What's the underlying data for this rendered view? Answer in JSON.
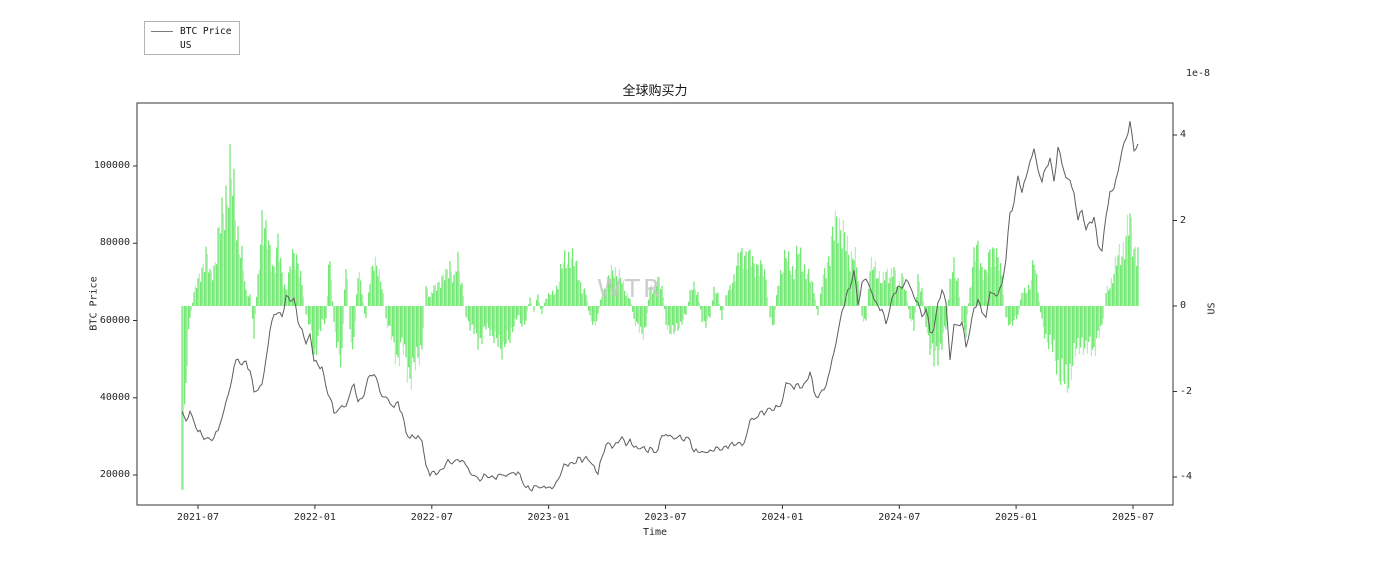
{
  "figure": {
    "title": "全球购买力",
    "watermark": "WTR",
    "background": "#ffffff"
  },
  "legend": {
    "items": [
      {
        "label": "BTC Price",
        "type": "line",
        "color": "#7a7a7a"
      },
      {
        "label": "US",
        "type": "patch",
        "color": "#3fdf3f"
      }
    ]
  },
  "axes": {
    "x": {
      "label": "Time"
    },
    "y_left": {
      "label": "BTC Price"
    },
    "y_right": {
      "label": "US",
      "offset_text": "1e-8"
    }
  },
  "chart_data": {
    "type": "line+bar",
    "title": "全球购买力",
    "xlabel": "Time",
    "ylabel_left": "BTC Price",
    "ylabel_right": "US",
    "right_axis_multiplier": "1e-8",
    "grid": false,
    "legend_position": "upper-left-outside",
    "x_tick_labels": [
      "2021-07",
      "2022-01",
      "2022-07",
      "2023-01",
      "2023-07",
      "2024-01",
      "2024-07",
      "2025-01",
      "2025-07"
    ],
    "y_left_tick_labels": [
      "20000",
      "40000",
      "60000",
      "80000",
      "100000"
    ],
    "y_left_tick_values": [
      20000,
      40000,
      60000,
      80000,
      100000
    ],
    "y_right_tick_labels": [
      "4",
      "2",
      "0",
      "-2",
      "-4"
    ],
    "y_right_tick_values": [
      4,
      2,
      0,
      -2,
      -4
    ],
    "y_left_range": [
      12200,
      116400
    ],
    "y_right_range": [
      -4.75,
      4.75
    ],
    "x_range": [
      "2021-04-20",
      "2025-08-08"
    ],
    "start_date": "2021-06-01",
    "step_days": 6.25,
    "series": [
      {
        "name": "BTC Price",
        "type": "line",
        "axis": "left",
        "color": "#5d5d5d",
        "values": [
          36500,
          34000,
          36500,
          33800,
          31200,
          30300,
          29500,
          29300,
          29700,
          31500,
          34800,
          39000,
          42500,
          48000,
          50000,
          48500,
          49500,
          47000,
          41500,
          42000,
          43500,
          50000,
          57500,
          61500,
          62000,
          61000,
          66500,
          65000,
          65800,
          59500,
          57800,
          54000,
          56500,
          49500,
          48500,
          48000,
          42800,
          40000,
          36000,
          36800,
          38000,
          37800,
          41000,
          43500,
          39000,
          39800,
          43000,
          45800,
          46000,
          43800,
          40300,
          40200,
          38500,
          37500,
          39000,
          36000,
          31000,
          29500,
          29800,
          30200,
          28800,
          22500,
          19800,
          21000,
          20500,
          21500,
          23000,
          23200,
          23500,
          24000,
          23800,
          22500,
          20500,
          19900,
          19200,
          19000,
          19900,
          19400,
          19300,
          20000,
          20000,
          19600,
          20400,
          20600,
          20800,
          18500,
          16700,
          16200,
          17200,
          16900,
          16800,
          16600,
          16900,
          17000,
          18800,
          21200,
          22700,
          23100,
          22900,
          24600,
          23300,
          24800,
          23400,
          22400,
          20200,
          24700,
          27800,
          28100,
          27500,
          28300,
          29900,
          27600,
          29300,
          27200,
          26800,
          27100,
          26300,
          27200,
          25800,
          26500,
          30200,
          30500,
          30300,
          29300,
          29900,
          29200,
          29800,
          29100,
          26000,
          25900,
          26100,
          25800,
          26500,
          26200,
          27100,
          26500,
          27500,
          27900,
          27600,
          28400,
          27600,
          29800,
          34200,
          34400,
          35100,
          36600,
          36300,
          37300,
          36800,
          37700,
          38800,
          43900,
          43600,
          42200,
          43700,
          42600,
          44200,
          46600,
          41500,
          40000,
          42000,
          43100,
          47100,
          51800,
          57000,
          62400,
          66200,
          68300,
          73100,
          64000,
          69900,
          70700,
          68500,
          65500,
          63800,
          62900,
          59100,
          63200,
          66900,
          68900,
          68300,
          70600,
          68800,
          66100,
          64800,
          61000,
          63000,
          57000,
          57800,
          64700,
          67900,
          64600,
          49800,
          59000,
          58800,
          59500,
          53100,
          57500,
          63200,
          65500,
          62100,
          60800,
          67400,
          67000,
          66700,
          69400,
          75900,
          88000,
          90500,
          97500,
          93100,
          97000,
          101200,
          104500,
          99000,
          95900,
          99500,
          102100,
          96000,
          104900,
          100500,
          97000,
          96300,
          93000,
          86000,
          88500,
          83500,
          85500,
          86800,
          79500,
          78000,
          87000,
          93400,
          94200,
          98500,
          104000,
          107000,
          111600,
          103900,
          105700
        ]
      },
      {
        "name": "US",
        "type": "bar",
        "axis": "right",
        "color": "#3fdf3f",
        "unit": "1e-8",
        "values": [
          -4.3,
          -1.6,
          -0.3,
          0.3,
          0.55,
          0.9,
          1.2,
          0.7,
          0.9,
          1.5,
          2.0,
          2.6,
          3.0,
          2.5,
          1.7,
          1.1,
          0.3,
          0.25,
          -0.6,
          0.6,
          2.1,
          1.6,
          1.2,
          0.9,
          1.4,
          0.7,
          0.4,
          0.8,
          1.2,
          1.1,
          0.45,
          -0.2,
          -0.5,
          -1.1,
          -0.8,
          -0.4,
          -0.3,
          1.3,
          -0.5,
          -0.9,
          -1.3,
          1.2,
          -0.6,
          -1.0,
          0.9,
          0.3,
          -0.4,
          0.7,
          0.9,
          0.95,
          0.5,
          -0.3,
          -0.6,
          -1.0,
          -1.2,
          -0.9,
          -1.3,
          -1.6,
          -1.5,
          -1.2,
          -0.9,
          0.5,
          0.2,
          0.4,
          0.55,
          0.6,
          0.7,
          1.0,
          0.6,
          1.0,
          0.5,
          -0.2,
          -0.45,
          -0.6,
          -0.8,
          -0.7,
          -0.5,
          -0.55,
          -0.7,
          -0.9,
          -1.0,
          -0.75,
          -0.85,
          -0.4,
          -0.2,
          -0.5,
          -0.3,
          0.2,
          -0.15,
          0.25,
          -0.2,
          0.2,
          0.25,
          0.3,
          0.5,
          0.9,
          1.1,
          1.2,
          1.0,
          0.8,
          0.4,
          0.3,
          -0.3,
          -0.5,
          -0.2,
          0.3,
          0.5,
          0.7,
          0.9,
          0.75,
          0.55,
          0.3,
          0.2,
          -0.3,
          -0.5,
          -0.7,
          -0.45,
          0.5,
          0.35,
          0.6,
          0.5,
          -0.4,
          -0.55,
          -0.65,
          -0.5,
          -0.35,
          -0.2,
          0.3,
          0.45,
          0.3,
          -0.3,
          -0.4,
          -0.25,
          0.35,
          0.25,
          -0.3,
          0.2,
          0.4,
          0.7,
          1.0,
          1.15,
          1.25,
          1.1,
          0.9,
          1.0,
          0.85,
          0.6,
          -0.3,
          -0.4,
          0.5,
          0.9,
          1.1,
          0.95,
          0.8,
          1.25,
          1.0,
          0.85,
          0.6,
          0.4,
          -0.3,
          0.5,
          0.9,
          1.3,
          1.7,
          2.05,
          1.8,
          1.4,
          1.1,
          1.35,
          0.6,
          -0.3,
          -0.4,
          0.8,
          1.1,
          0.7,
          0.5,
          0.9,
          0.65,
          0.8,
          0.5,
          0.7,
          0.3,
          -0.3,
          -0.5,
          0.6,
          0.4,
          -0.4,
          -0.9,
          -1.3,
          -1.1,
          -0.8,
          -0.5,
          0.5,
          0.9,
          0.6,
          -0.35,
          -0.6,
          0.4,
          1.1,
          1.3,
          0.9,
          0.7,
          1.2,
          1.4,
          1.0,
          0.7,
          -0.3,
          -0.4,
          -0.35,
          -0.25,
          0.3,
          0.35,
          0.5,
          1.0,
          0.4,
          -0.4,
          -0.7,
          -0.9,
          -1.1,
          -1.4,
          -1.7,
          -1.9,
          -1.5,
          -1.2,
          -1.0,
          -0.8,
          -1.1,
          -0.9,
          -1.0,
          -0.75,
          -0.5,
          0.3,
          0.5,
          0.8,
          1.1,
          1.3,
          1.6,
          1.9,
          1.4,
          1.25
        ]
      }
    ]
  }
}
